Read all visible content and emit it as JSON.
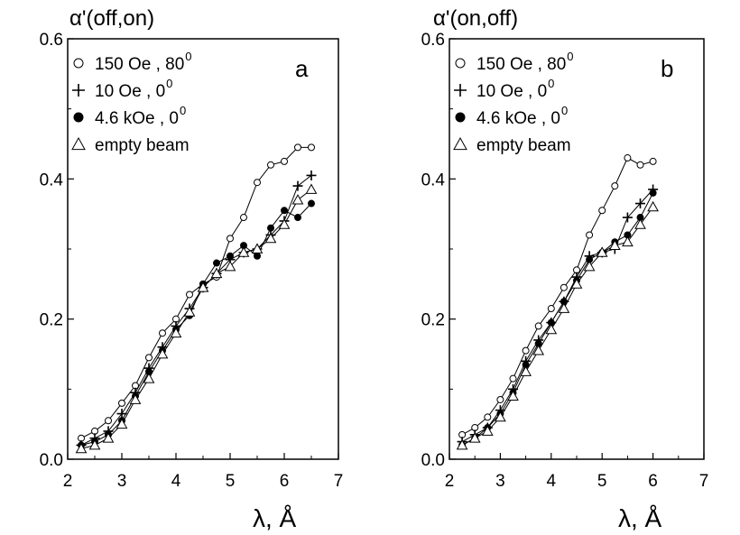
{
  "chart_data": [
    {
      "type": "line",
      "panel_label": "a",
      "ylabel": "α'(off,on)",
      "xlabel": "λ, Å",
      "xlim": [
        2,
        7
      ],
      "ylim": [
        0.0,
        0.6
      ],
      "xticks": [
        "2",
        "3",
        "4",
        "5",
        "6",
        "7"
      ],
      "yticks": [
        "0.0",
        "0.2",
        "0.4",
        "0.6"
      ],
      "legend_position": "top-left",
      "series": [
        {
          "name": "150 Oe , 80",
          "name_superscript": "0",
          "marker": "open-circle",
          "x": [
            2.25,
            2.5,
            2.75,
            3.0,
            3.25,
            3.5,
            3.75,
            4.0,
            4.25,
            4.5,
            4.75,
            5.0,
            5.25,
            5.5,
            5.75,
            6.0,
            6.25,
            6.5
          ],
          "y": [
            0.03,
            0.04,
            0.055,
            0.08,
            0.105,
            0.145,
            0.18,
            0.2,
            0.235,
            0.25,
            0.26,
            0.315,
            0.345,
            0.395,
            0.42,
            0.425,
            0.445,
            0.445
          ]
        },
        {
          "name": "10   Oe ,  0",
          "name_superscript": "0",
          "marker": "plus",
          "x": [
            2.25,
            2.5,
            2.75,
            3.0,
            3.25,
            3.5,
            3.75,
            4.0,
            4.25,
            4.5,
            4.75,
            5.0,
            5.25,
            5.5,
            5.75,
            6.0,
            6.25,
            6.5
          ],
          "y": [
            0.02,
            0.03,
            0.04,
            0.065,
            0.095,
            0.13,
            0.16,
            0.19,
            0.215,
            0.245,
            0.265,
            0.285,
            0.295,
            0.3,
            0.32,
            0.34,
            0.39,
            0.405
          ]
        },
        {
          "name": "4.6 kOe ,  0",
          "name_superscript": "0",
          "marker": "filled-circle",
          "x": [
            2.25,
            2.5,
            2.75,
            3.0,
            3.25,
            3.5,
            3.75,
            4.0,
            4.25,
            4.5,
            4.75,
            5.0,
            5.25,
            5.5,
            5.75,
            6.0,
            6.25,
            6.5
          ],
          "y": [
            0.02,
            0.025,
            0.035,
            0.055,
            0.09,
            0.125,
            0.155,
            0.185,
            0.205,
            0.25,
            0.28,
            0.29,
            0.305,
            0.29,
            0.33,
            0.355,
            0.345,
            0.365
          ]
        },
        {
          "name": "empty beam",
          "marker": "open-triangle",
          "x": [
            2.25,
            2.5,
            2.75,
            3.0,
            3.25,
            3.5,
            3.75,
            4.0,
            4.25,
            4.5,
            4.75,
            5.0,
            5.25,
            5.5,
            5.75,
            6.0,
            6.25,
            6.5
          ],
          "y": [
            0.015,
            0.02,
            0.03,
            0.05,
            0.085,
            0.115,
            0.15,
            0.18,
            0.21,
            0.245,
            0.265,
            0.275,
            0.295,
            0.3,
            0.315,
            0.335,
            0.37,
            0.385
          ]
        }
      ]
    },
    {
      "type": "line",
      "panel_label": "b",
      "ylabel": "α'(on,off)",
      "xlabel": "λ, Å",
      "xlim": [
        2,
        7
      ],
      "ylim": [
        0.0,
        0.6
      ],
      "xticks": [
        "2",
        "3",
        "4",
        "5",
        "6",
        "7"
      ],
      "yticks": [
        "0.0",
        "0.2",
        "0.4",
        "0.6"
      ],
      "legend_position": "top-left",
      "series": [
        {
          "name": "150 Oe , 80",
          "name_superscript": "0",
          "marker": "open-circle",
          "x": [
            2.25,
            2.5,
            2.75,
            3.0,
            3.25,
            3.5,
            3.75,
            4.0,
            4.25,
            4.5,
            4.75,
            5.0,
            5.25,
            5.5,
            5.75,
            6.0
          ],
          "y": [
            0.035,
            0.045,
            0.06,
            0.085,
            0.115,
            0.155,
            0.19,
            0.215,
            0.245,
            0.27,
            0.32,
            0.355,
            0.39,
            0.43,
            0.42,
            0.425
          ]
        },
        {
          "name": "10 Oe ,    0",
          "name_superscript": "0",
          "marker": "plus",
          "x": [
            2.25,
            2.5,
            2.75,
            3.0,
            3.25,
            3.5,
            3.75,
            4.0,
            4.25,
            4.5,
            4.75,
            5.0,
            5.25,
            5.5,
            5.75,
            6.0
          ],
          "y": [
            0.025,
            0.035,
            0.045,
            0.07,
            0.1,
            0.14,
            0.17,
            0.195,
            0.225,
            0.26,
            0.29,
            0.295,
            0.3,
            0.345,
            0.365,
            0.385
          ]
        },
        {
          "name": "4.6 kOe ,  0",
          "name_superscript": "0",
          "marker": "filled-circle",
          "x": [
            2.25,
            2.5,
            2.75,
            3.0,
            3.25,
            3.5,
            3.75,
            4.0,
            4.25,
            4.5,
            4.75,
            5.0,
            5.25,
            5.5,
            5.75,
            6.0
          ],
          "y": [
            0.02,
            0.03,
            0.045,
            0.065,
            0.095,
            0.135,
            0.165,
            0.195,
            0.225,
            0.255,
            0.285,
            0.295,
            0.31,
            0.32,
            0.345,
            0.38
          ]
        },
        {
          "name": "empty beam",
          "marker": "open-triangle",
          "x": [
            2.25,
            2.5,
            2.75,
            3.0,
            3.25,
            3.5,
            3.75,
            4.0,
            4.25,
            4.5,
            4.75,
            5.0,
            5.25,
            5.5,
            5.75,
            6.0
          ],
          "y": [
            0.02,
            0.03,
            0.04,
            0.06,
            0.09,
            0.125,
            0.155,
            0.185,
            0.215,
            0.25,
            0.275,
            0.295,
            0.305,
            0.31,
            0.335,
            0.36
          ]
        }
      ]
    }
  ]
}
